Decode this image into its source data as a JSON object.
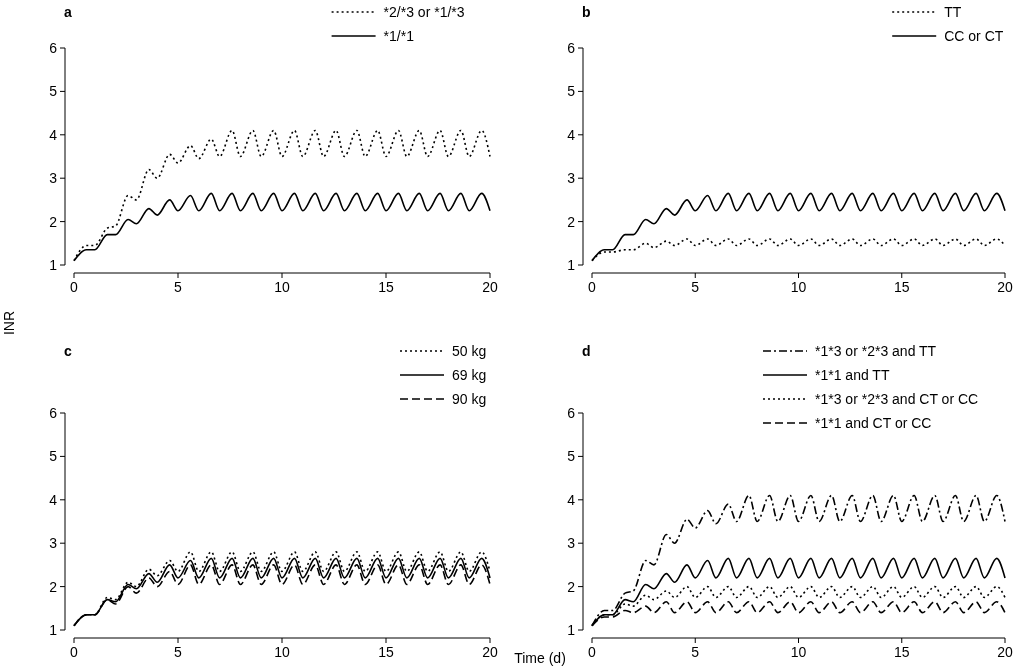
{
  "chart_data": [
    {
      "type": "line",
      "title": "a",
      "ylabel": "INR",
      "xlim": [
        0,
        20
      ],
      "ylim": [
        1,
        6
      ],
      "xticks": [
        0,
        5,
        10,
        15,
        20
      ],
      "yticks": [
        1,
        2,
        3,
        4,
        5,
        6
      ],
      "grid": false,
      "legend": "top right",
      "marker": "none",
      "x": [
        0,
        0.6,
        1,
        1.6,
        2,
        2.6,
        3,
        3.6,
        4,
        4.6,
        5,
        5.6,
        6,
        6.6,
        7,
        7.6,
        8,
        8.6,
        9,
        9.6,
        10,
        10.6,
        11,
        11.6,
        12,
        12.6,
        13,
        13.6,
        14,
        14.6,
        15,
        15.6,
        16,
        16.6,
        17,
        17.6,
        18,
        18.6,
        19,
        19.6,
        20
      ],
      "series": [
        {
          "name": "*2/*3 or *1/*3",
          "color": "#000000",
          "line_style": "dotted",
          "values": [
            1.1,
            1.45,
            1.45,
            1.85,
            1.9,
            2.6,
            2.5,
            3.2,
            3.0,
            3.55,
            3.35,
            3.75,
            3.45,
            3.9,
            3.5,
            4.1,
            3.5,
            4.1,
            3.5,
            4.1,
            3.5,
            4.1,
            3.5,
            4.1,
            3.5,
            4.1,
            3.5,
            4.1,
            3.5,
            4.1,
            3.5,
            4.1,
            3.5,
            4.1,
            3.5,
            4.1,
            3.5,
            4.1,
            3.5,
            4.1,
            3.5
          ]
        },
        {
          "name": "*1/*1",
          "color": "#000000",
          "line_style": "solid",
          "values": [
            1.1,
            1.35,
            1.35,
            1.7,
            1.7,
            2.05,
            1.95,
            2.3,
            2.15,
            2.5,
            2.25,
            2.6,
            2.25,
            2.65,
            2.25,
            2.65,
            2.25,
            2.65,
            2.25,
            2.65,
            2.25,
            2.65,
            2.25,
            2.65,
            2.25,
            2.65,
            2.25,
            2.65,
            2.25,
            2.65,
            2.25,
            2.65,
            2.25,
            2.65,
            2.25,
            2.65,
            2.25,
            2.65,
            2.25,
            2.65,
            2.25
          ]
        }
      ]
    },
    {
      "type": "line",
      "title": "b",
      "xlim": [
        0,
        20
      ],
      "ylim": [
        1,
        6
      ],
      "xticks": [
        0,
        5,
        10,
        15,
        20
      ],
      "yticks": [
        1,
        2,
        3,
        4,
        5,
        6
      ],
      "grid": false,
      "legend": "top right",
      "marker": "none",
      "x": [
        0,
        0.6,
        1,
        1.6,
        2,
        2.6,
        3,
        3.6,
        4,
        4.6,
        5,
        5.6,
        6,
        6.6,
        7,
        7.6,
        8,
        8.6,
        9,
        9.6,
        10,
        10.6,
        11,
        11.6,
        12,
        12.6,
        13,
        13.6,
        14,
        14.6,
        15,
        15.6,
        16,
        16.6,
        17,
        17.6,
        18,
        18.6,
        19,
        19.6,
        20
      ],
      "series": [
        {
          "name": "TT",
          "color": "#000000",
          "line_style": "dotted",
          "values": [
            1.1,
            1.3,
            1.3,
            1.35,
            1.35,
            1.5,
            1.4,
            1.55,
            1.45,
            1.6,
            1.45,
            1.6,
            1.45,
            1.6,
            1.45,
            1.6,
            1.45,
            1.6,
            1.45,
            1.6,
            1.45,
            1.6,
            1.45,
            1.6,
            1.45,
            1.6,
            1.45,
            1.6,
            1.45,
            1.6,
            1.45,
            1.6,
            1.45,
            1.6,
            1.45,
            1.6,
            1.45,
            1.6,
            1.45,
            1.6,
            1.45
          ]
        },
        {
          "name": "CC or CT",
          "color": "#000000",
          "line_style": "solid",
          "values": [
            1.1,
            1.35,
            1.35,
            1.7,
            1.7,
            2.05,
            1.95,
            2.3,
            2.15,
            2.5,
            2.25,
            2.6,
            2.25,
            2.65,
            2.25,
            2.65,
            2.25,
            2.65,
            2.25,
            2.65,
            2.25,
            2.65,
            2.25,
            2.65,
            2.25,
            2.65,
            2.25,
            2.65,
            2.25,
            2.65,
            2.25,
            2.65,
            2.25,
            2.65,
            2.25,
            2.65,
            2.25,
            2.65,
            2.25,
            2.65,
            2.25
          ]
        }
      ]
    },
    {
      "type": "line",
      "title": "c",
      "xlabel": "Time (d)",
      "xlim": [
        0,
        20
      ],
      "ylim": [
        1,
        6
      ],
      "xticks": [
        0,
        5,
        10,
        15,
        20
      ],
      "yticks": [
        1,
        2,
        3,
        4,
        5,
        6
      ],
      "grid": false,
      "legend": "top right",
      "marker": "none",
      "x": [
        0,
        0.6,
        1,
        1.6,
        2,
        2.6,
        3,
        3.6,
        4,
        4.6,
        5,
        5.6,
        6,
        6.6,
        7,
        7.6,
        8,
        8.6,
        9,
        9.6,
        10,
        10.6,
        11,
        11.6,
        12,
        12.6,
        13,
        13.6,
        14,
        14.6,
        15,
        15.6,
        16,
        16.6,
        17,
        17.6,
        18,
        18.6,
        19,
        19.6,
        20
      ],
      "series": [
        {
          "name": "50 kg",
          "color": "#000000",
          "line_style": "dotted",
          "values": [
            1.1,
            1.35,
            1.35,
            1.75,
            1.7,
            2.1,
            2.0,
            2.4,
            2.25,
            2.6,
            2.35,
            2.8,
            2.35,
            2.8,
            2.35,
            2.8,
            2.35,
            2.8,
            2.35,
            2.8,
            2.35,
            2.8,
            2.35,
            2.8,
            2.35,
            2.8,
            2.35,
            2.8,
            2.35,
            2.8,
            2.35,
            2.8,
            2.35,
            2.8,
            2.35,
            2.8,
            2.35,
            2.8,
            2.35,
            2.8,
            2.35
          ]
        },
        {
          "name": "69 kg",
          "color": "#000000",
          "line_style": "solid",
          "values": [
            1.1,
            1.35,
            1.35,
            1.7,
            1.65,
            2.05,
            1.95,
            2.3,
            2.1,
            2.5,
            2.2,
            2.6,
            2.2,
            2.65,
            2.2,
            2.65,
            2.2,
            2.65,
            2.2,
            2.65,
            2.2,
            2.65,
            2.2,
            2.65,
            2.2,
            2.65,
            2.2,
            2.65,
            2.2,
            2.65,
            2.2,
            2.65,
            2.2,
            2.65,
            2.2,
            2.65,
            2.2,
            2.65,
            2.2,
            2.65,
            2.2
          ]
        },
        {
          "name": "90 kg",
          "color": "#000000",
          "line_style": "dashed",
          "values": [
            1.1,
            1.35,
            1.35,
            1.7,
            1.6,
            2.0,
            1.85,
            2.2,
            2.0,
            2.35,
            2.05,
            2.5,
            2.05,
            2.5,
            2.05,
            2.5,
            2.05,
            2.5,
            2.05,
            2.5,
            2.05,
            2.5,
            2.05,
            2.5,
            2.05,
            2.5,
            2.05,
            2.5,
            2.05,
            2.5,
            2.05,
            2.5,
            2.05,
            2.5,
            2.05,
            2.5,
            2.05,
            2.5,
            2.05,
            2.5,
            2.05
          ]
        }
      ]
    },
    {
      "type": "line",
      "title": "d",
      "xlim": [
        0,
        20
      ],
      "ylim": [
        1,
        6
      ],
      "xticks": [
        0,
        5,
        10,
        15,
        20
      ],
      "yticks": [
        1,
        2,
        3,
        4,
        5,
        6
      ],
      "grid": false,
      "legend": "top right",
      "marker": "none",
      "x": [
        0,
        0.6,
        1,
        1.6,
        2,
        2.6,
        3,
        3.6,
        4,
        4.6,
        5,
        5.6,
        6,
        6.6,
        7,
        7.6,
        8,
        8.6,
        9,
        9.6,
        10,
        10.6,
        11,
        11.6,
        12,
        12.6,
        13,
        13.6,
        14,
        14.6,
        15,
        15.6,
        16,
        16.6,
        17,
        17.6,
        18,
        18.6,
        19,
        19.6,
        20
      ],
      "series": [
        {
          "name": "*1*3 or *2*3 and TT",
          "color": "#000000",
          "line_style": "dashdot",
          "values": [
            1.1,
            1.45,
            1.45,
            1.85,
            1.9,
            2.6,
            2.5,
            3.2,
            3.0,
            3.55,
            3.35,
            3.75,
            3.45,
            3.9,
            3.5,
            4.1,
            3.5,
            4.1,
            3.5,
            4.1,
            3.5,
            4.1,
            3.5,
            4.1,
            3.5,
            4.1,
            3.5,
            4.1,
            3.5,
            4.1,
            3.5,
            4.1,
            3.5,
            4.1,
            3.5,
            4.1,
            3.5,
            4.1,
            3.5,
            4.1,
            3.5
          ]
        },
        {
          "name": "*1*1 and TT",
          "color": "#000000",
          "line_style": "solid",
          "values": [
            1.1,
            1.35,
            1.35,
            1.7,
            1.65,
            2.05,
            1.95,
            2.3,
            2.1,
            2.5,
            2.2,
            2.6,
            2.2,
            2.65,
            2.2,
            2.65,
            2.2,
            2.65,
            2.2,
            2.65,
            2.2,
            2.65,
            2.2,
            2.65,
            2.2,
            2.65,
            2.2,
            2.65,
            2.2,
            2.65,
            2.2,
            2.65,
            2.2,
            2.65,
            2.2,
            2.65,
            2.2,
            2.65,
            2.2,
            2.65,
            2.2
          ]
        },
        {
          "name": "*1*3 or *2*3 and CT or CC",
          "color": "#000000",
          "line_style": "dotted",
          "values": [
            1.1,
            1.35,
            1.35,
            1.6,
            1.55,
            1.8,
            1.7,
            1.9,
            1.75,
            2.0,
            1.75,
            2.0,
            1.75,
            2.0,
            1.75,
            2.0,
            1.75,
            2.0,
            1.75,
            2.0,
            1.75,
            2.0,
            1.75,
            2.0,
            1.75,
            2.0,
            1.75,
            2.0,
            1.75,
            2.0,
            1.75,
            2.0,
            1.75,
            2.0,
            1.75,
            2.0,
            1.75,
            2.0,
            1.75,
            2.0,
            1.75
          ]
        },
        {
          "name": "*1*1 and CT or CC",
          "color": "#000000",
          "line_style": "dashed",
          "values": [
            1.1,
            1.3,
            1.3,
            1.45,
            1.4,
            1.55,
            1.4,
            1.65,
            1.4,
            1.65,
            1.4,
            1.65,
            1.4,
            1.65,
            1.4,
            1.65,
            1.4,
            1.65,
            1.4,
            1.65,
            1.4,
            1.65,
            1.4,
            1.65,
            1.4,
            1.65,
            1.4,
            1.65,
            1.4,
            1.65,
            1.4,
            1.65,
            1.4,
            1.65,
            1.4,
            1.65,
            1.4,
            1.65,
            1.4,
            1.65,
            1.4
          ]
        }
      ]
    }
  ]
}
